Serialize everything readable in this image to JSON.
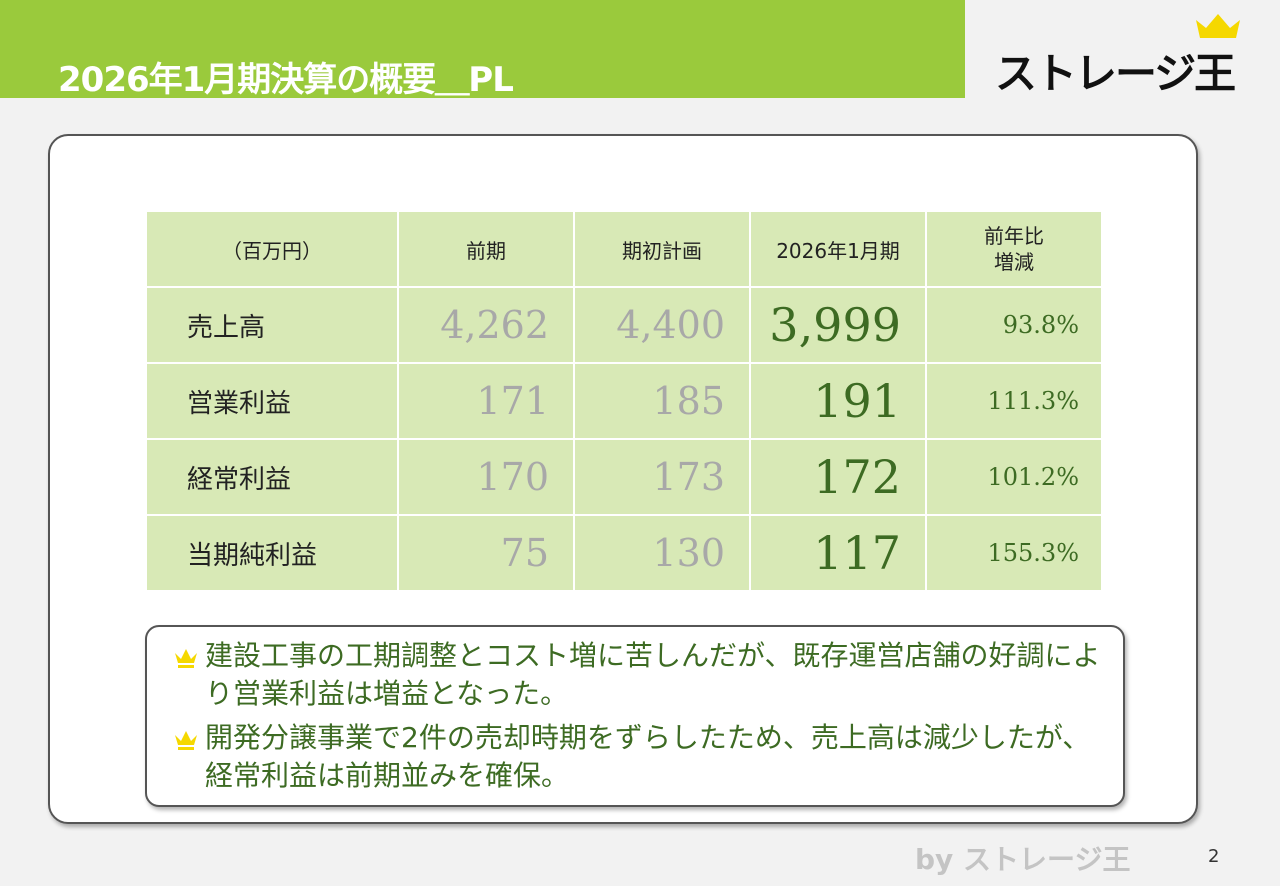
{
  "header": {
    "title": "2026年1月期決算の概要＿PL",
    "logo_text": "ストレージ王"
  },
  "table": {
    "headers": [
      "（百万円）",
      "前期",
      "期初計画",
      "2026年1月期",
      "前年比\n増減"
    ],
    "rows": [
      {
        "label": "売上高",
        "prev": "4,262",
        "plan": "4,400",
        "actual": "3,999",
        "yoy": "93.8%"
      },
      {
        "label": "営業利益",
        "prev": "171",
        "plan": "185",
        "actual": "191",
        "yoy": "111.3%"
      },
      {
        "label": "経常利益",
        "prev": "170",
        "plan": "173",
        "actual": "172",
        "yoy": "101.2%"
      },
      {
        "label": "当期純利益",
        "prev": "75",
        "plan": "130",
        "actual": "117",
        "yoy": "155.3%"
      }
    ]
  },
  "notes": [
    "建設工事の工期調整とコスト増に苦しんだが、既存運営店舗の好調により営業利益は増益となった。",
    "開発分譲事業で2件の売却時期をずらしたため、売上高は減少したが、経常利益は前期並みを確保。"
  ],
  "footer": {
    "text": "by ストレージ王",
    "page": "2"
  },
  "colors": {
    "brand_green": "#9aca3c",
    "cell_green": "#d8e9b6",
    "text_green": "#3d6b23",
    "crown_yellow": "#f5d800"
  }
}
